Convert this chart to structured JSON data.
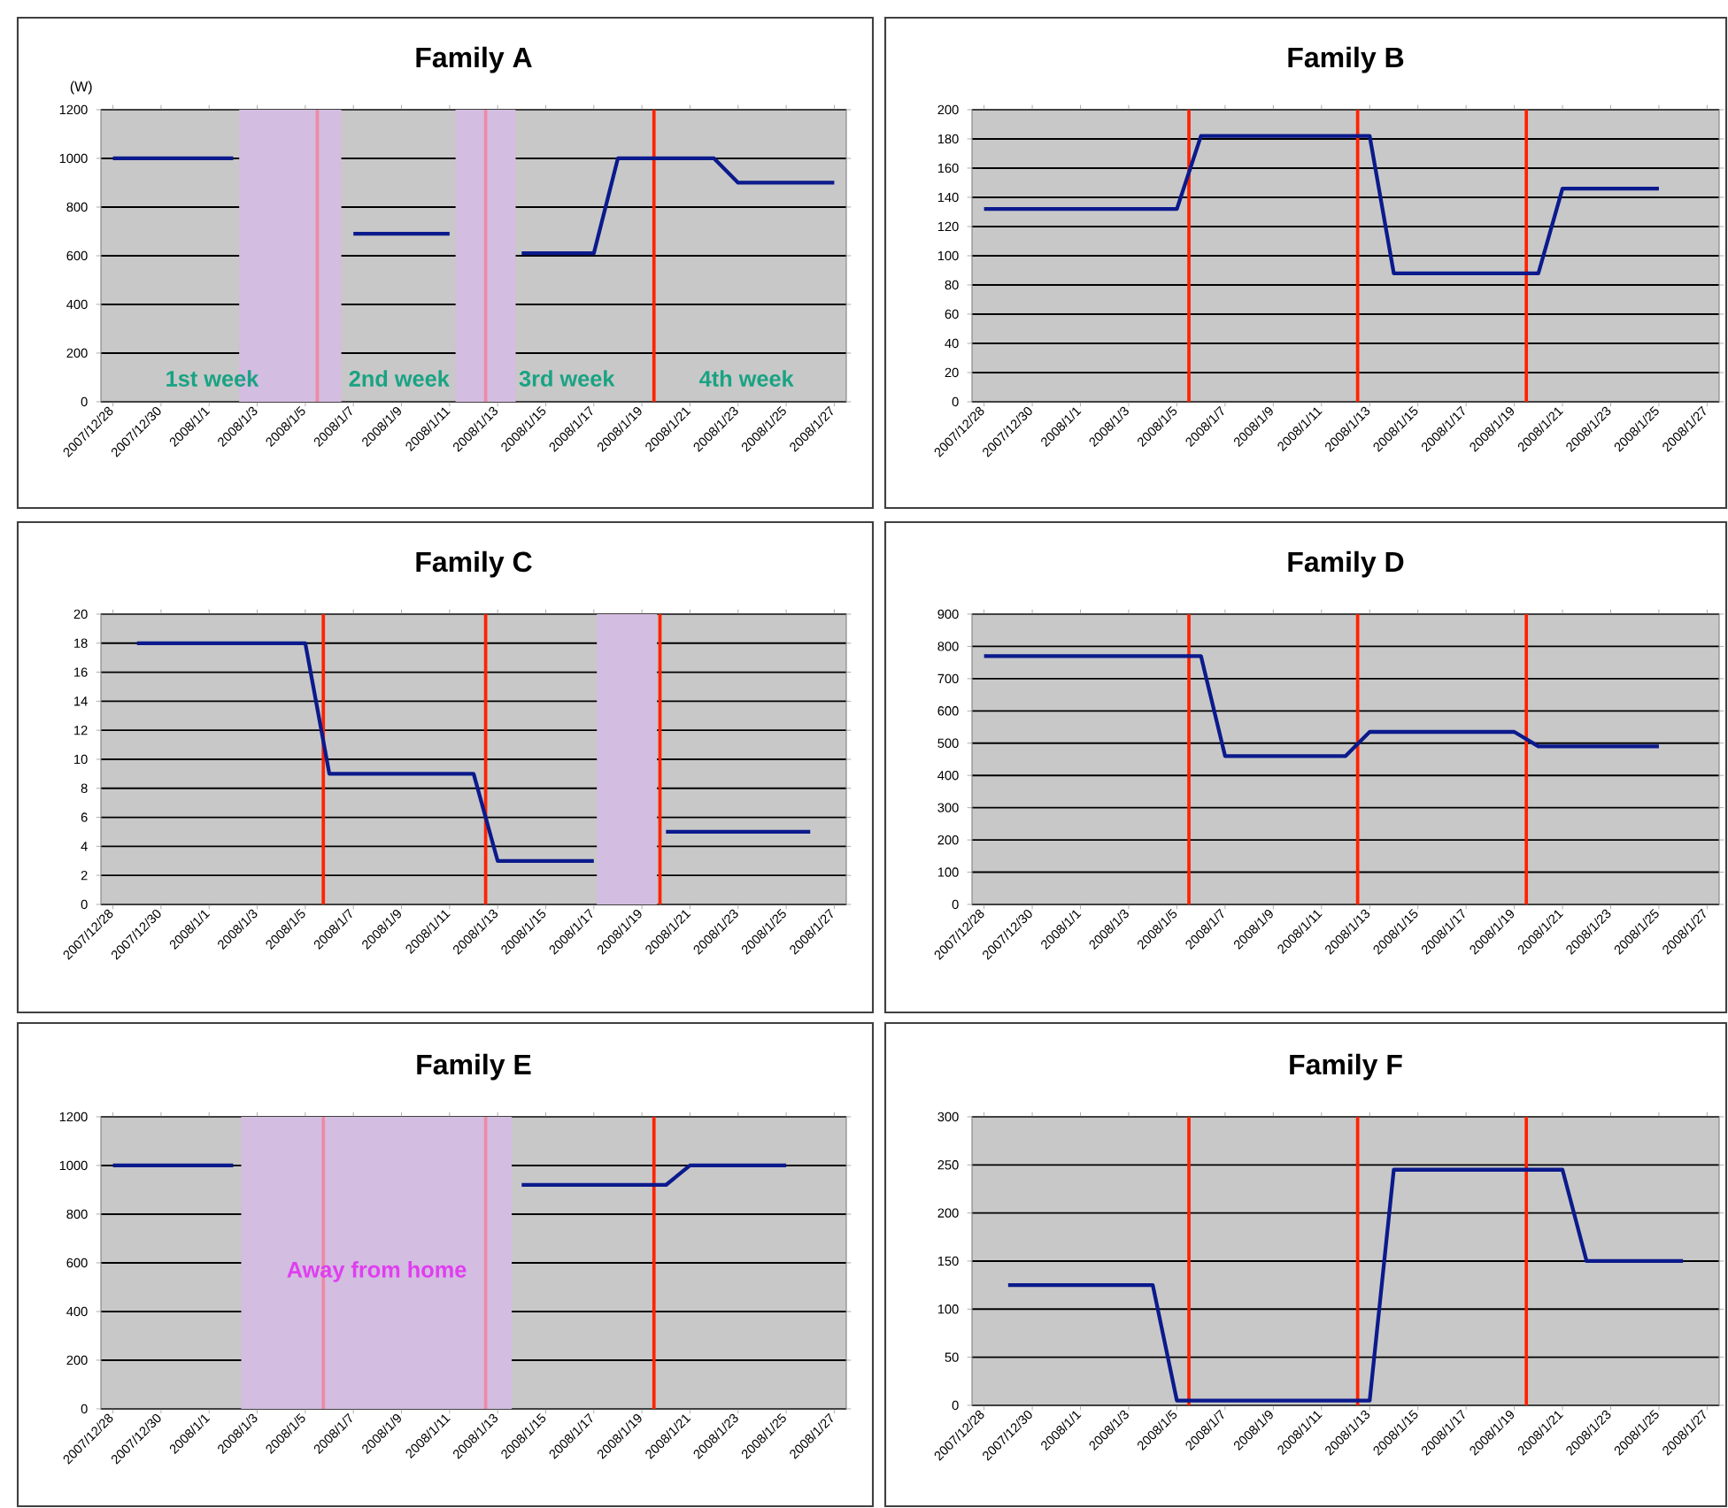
{
  "chart_data": [
    {
      "type": "line",
      "title": "Family A",
      "ylabel": "(W)",
      "color": "#0b1a8c",
      "grid": "y",
      "x": [
        "2007-12-28",
        "2007-12-29",
        "2007-12-30",
        "2007-12-31",
        "2008-01-01",
        "2008-01-02",
        "2008-01-03",
        "2008-01-04",
        "2008-01-05",
        "2008-01-06",
        "2008-01-07",
        "2008-01-08",
        "2008-01-09",
        "2008-01-10",
        "2008-01-11",
        "2008-01-12",
        "2008-01-13",
        "2008-01-14",
        "2008-01-15",
        "2008-01-16",
        "2008-01-17",
        "2008-01-18",
        "2008-01-19",
        "2008-01-20",
        "2008-01-21",
        "2008-01-22",
        "2008-01-23",
        "2008-01-24",
        "2008-01-25",
        "2008-01-26",
        "2008-01-27"
      ],
      "values": [
        1000,
        1000,
        1000,
        1000,
        1000,
        1000,
        null,
        null,
        null,
        null,
        690,
        690,
        690,
        690,
        690,
        null,
        null,
        610,
        610,
        610,
        610,
        1000,
        1000,
        1000,
        1000,
        1000,
        900,
        900,
        900,
        900,
        900
      ],
      "xlim": [
        "2007-12-27T12:00",
        "2008-01-27T12:00"
      ],
      "xticks": [
        {
          "value": "2007-12-28",
          "label": "2007/12/28"
        },
        {
          "value": "2007-12-30",
          "label": "2007/12/30"
        },
        {
          "value": "2008-01-01",
          "label": "2008/1/1"
        },
        {
          "value": "2008-01-03",
          "label": "2008/1/3"
        },
        {
          "value": "2008-01-05",
          "label": "2008/1/5"
        },
        {
          "value": "2008-01-07",
          "label": "2008/1/7"
        },
        {
          "value": "2008-01-09",
          "label": "2008/1/9"
        },
        {
          "value": "2008-01-11",
          "label": "2008/1/11"
        },
        {
          "value": "2008-01-13",
          "label": "2008/1/13"
        },
        {
          "value": "2008-01-15",
          "label": "2008/1/15"
        },
        {
          "value": "2008-01-17",
          "label": "2008/1/17"
        },
        {
          "value": "2008-01-19",
          "label": "2008/1/19"
        },
        {
          "value": "2008-01-21",
          "label": "2008/1/21"
        },
        {
          "value": "2008-01-23",
          "label": "2008/1/23"
        },
        {
          "value": "2008-01-25",
          "label": "2008/1/25"
        },
        {
          "value": "2008-01-27",
          "label": "2008/1/27"
        }
      ],
      "ylim": [
        0,
        1200
      ],
      "yticks": [
        0,
        200,
        400,
        600,
        800,
        1000,
        1200
      ],
      "bands": [
        {
          "axis": "x",
          "from": "2008-01-02T06:00",
          "to": "2008-01-06T12:00",
          "color": "#d3bde0"
        },
        {
          "axis": "x",
          "from": "2008-01-11T06:00",
          "to": "2008-01-13T18:00",
          "color": "#d3bde0"
        }
      ],
      "ref_lines": [
        {
          "axis": "x",
          "value": "2008-01-05T12:00",
          "color": "#ec8aa6"
        },
        {
          "axis": "x",
          "value": "2008-01-12T12:00",
          "color": "#ec8aa6"
        },
        {
          "axis": "x",
          "value": "2008-01-19T12:00",
          "color": "#ff2200"
        }
      ],
      "annotations": [
        "1st week",
        "2nd week",
        "3rd week",
        "4th week"
      ]
    },
    {
      "type": "line",
      "title": "Family B",
      "color": "#0b1a8c",
      "grid": "y",
      "x": [
        "2007-12-28",
        "2007-12-29",
        "2007-12-30",
        "2007-12-31",
        "2008-01-01",
        "2008-01-02",
        "2008-01-03",
        "2008-01-04",
        "2008-01-05",
        "2008-01-06",
        "2008-01-07",
        "2008-01-08",
        "2008-01-09",
        "2008-01-10",
        "2008-01-11",
        "2008-01-12",
        "2008-01-13",
        "2008-01-14",
        "2008-01-15",
        "2008-01-16",
        "2008-01-17",
        "2008-01-18",
        "2008-01-19",
        "2008-01-20",
        "2008-01-21",
        "2008-01-22",
        "2008-01-23",
        "2008-01-24",
        "2008-01-25"
      ],
      "values": [
        132,
        132,
        132,
        132,
        132,
        132,
        132,
        132,
        132,
        182,
        182,
        182,
        182,
        182,
        182,
        182,
        182,
        88,
        88,
        88,
        88,
        88,
        88,
        88,
        146,
        146,
        146,
        146,
        146
      ],
      "xlim": [
        "2007-12-27T12:00",
        "2008-01-27T12:00"
      ],
      "xticks": [
        {
          "value": "2007-12-28",
          "label": "2007/12/28"
        },
        {
          "value": "2007-12-30",
          "label": "2007/12/30"
        },
        {
          "value": "2008-01-01",
          "label": "2008/1/1"
        },
        {
          "value": "2008-01-03",
          "label": "2008/1/3"
        },
        {
          "value": "2008-01-05",
          "label": "2008/1/5"
        },
        {
          "value": "2008-01-07",
          "label": "2008/1/7"
        },
        {
          "value": "2008-01-09",
          "label": "2008/1/9"
        },
        {
          "value": "2008-01-11",
          "label": "2008/1/11"
        },
        {
          "value": "2008-01-13",
          "label": "2008/1/13"
        },
        {
          "value": "2008-01-15",
          "label": "2008/1/15"
        },
        {
          "value": "2008-01-17",
          "label": "2008/1/17"
        },
        {
          "value": "2008-01-19",
          "label": "2008/1/19"
        },
        {
          "value": "2008-01-21",
          "label": "2008/1/21"
        },
        {
          "value": "2008-01-23",
          "label": "2008/1/23"
        },
        {
          "value": "2008-01-25",
          "label": "2008/1/25"
        },
        {
          "value": "2008-01-27",
          "label": "2008/1/27"
        }
      ],
      "ylim": [
        0,
        200
      ],
      "yticks": [
        0,
        20,
        40,
        60,
        80,
        100,
        120,
        140,
        160,
        180,
        200
      ],
      "ref_lines": [
        {
          "axis": "x",
          "value": "2008-01-05T12:00",
          "color": "#ff2200"
        },
        {
          "axis": "x",
          "value": "2008-01-12T12:00",
          "color": "#ff2200"
        },
        {
          "axis": "x",
          "value": "2008-01-19T12:00",
          "color": "#ff2200"
        }
      ]
    },
    {
      "type": "line",
      "title": "Family C",
      "color": "#0b1a8c",
      "grid": "y",
      "x": [
        "2007-12-29",
        "2007-12-30",
        "2007-12-31",
        "2008-01-01",
        "2008-01-02",
        "2008-01-03",
        "2008-01-04",
        "2008-01-05",
        "2008-01-06",
        "2008-01-07",
        "2008-01-08",
        "2008-01-09",
        "2008-01-10",
        "2008-01-11",
        "2008-01-12",
        "2008-01-13",
        "2008-01-14",
        "2008-01-15",
        "2008-01-16",
        "2008-01-17",
        "2008-01-18",
        "2008-01-19",
        "2008-01-20",
        "2008-01-21",
        "2008-01-22",
        "2008-01-23",
        "2008-01-24",
        "2008-01-25",
        "2008-01-26"
      ],
      "values": [
        18,
        18,
        18,
        18,
        18,
        18,
        18,
        18,
        9,
        9,
        9,
        9,
        9,
        9,
        9,
        3,
        3,
        3,
        3,
        3,
        null,
        null,
        5,
        5,
        5,
        5,
        5,
        5,
        5
      ],
      "xlim": [
        "2007-12-27T12:00",
        "2008-01-27T12:00"
      ],
      "xticks": [
        {
          "value": "2007-12-28",
          "label": "2007/12/28"
        },
        {
          "value": "2007-12-30",
          "label": "2007/12/30"
        },
        {
          "value": "2008-01-01",
          "label": "2008/1/1"
        },
        {
          "value": "2008-01-03",
          "label": "2008/1/3"
        },
        {
          "value": "2008-01-05",
          "label": "2008/1/5"
        },
        {
          "value": "2008-01-07",
          "label": "2008/1/7"
        },
        {
          "value": "2008-01-09",
          "label": "2008/1/9"
        },
        {
          "value": "2008-01-11",
          "label": "2008/1/11"
        },
        {
          "value": "2008-01-13",
          "label": "2008/1/13"
        },
        {
          "value": "2008-01-15",
          "label": "2008/1/15"
        },
        {
          "value": "2008-01-17",
          "label": "2008/1/17"
        },
        {
          "value": "2008-01-19",
          "label": "2008/1/19"
        },
        {
          "value": "2008-01-21",
          "label": "2008/1/21"
        },
        {
          "value": "2008-01-23",
          "label": "2008/1/23"
        },
        {
          "value": "2008-01-25",
          "label": "2008/1/25"
        },
        {
          "value": "2008-01-27",
          "label": "2008/1/27"
        }
      ],
      "ylim": [
        0,
        20
      ],
      "yticks": [
        0,
        2,
        4,
        6,
        8,
        10,
        12,
        14,
        16,
        18,
        20
      ],
      "bands": [
        {
          "axis": "x",
          "from": "2008-01-17T03:00",
          "to": "2008-01-19T15:00",
          "color": "#d3bde0"
        }
      ],
      "ref_lines": [
        {
          "axis": "x",
          "value": "2008-01-05T18:00",
          "color": "#ff2200"
        },
        {
          "axis": "x",
          "value": "2008-01-12T12:00",
          "color": "#ff2200"
        },
        {
          "axis": "x",
          "value": "2008-01-19T18:00",
          "color": "#ff2200"
        }
      ]
    },
    {
      "type": "line",
      "title": "Family D",
      "color": "#0b1a8c",
      "grid": "y",
      "x": [
        "2007-12-28",
        "2007-12-29",
        "2007-12-30",
        "2007-12-31",
        "2008-01-01",
        "2008-01-02",
        "2008-01-03",
        "2008-01-04",
        "2008-01-05",
        "2008-01-06",
        "2008-01-07",
        "2008-01-08",
        "2008-01-09",
        "2008-01-10",
        "2008-01-11",
        "2008-01-12",
        "2008-01-13",
        "2008-01-14",
        "2008-01-15",
        "2008-01-16",
        "2008-01-17",
        "2008-01-18",
        "2008-01-19",
        "2008-01-20",
        "2008-01-21",
        "2008-01-22",
        "2008-01-23",
        "2008-01-24",
        "2008-01-25"
      ],
      "values": [
        770,
        770,
        770,
        770,
        770,
        770,
        770,
        770,
        770,
        770,
        460,
        460,
        460,
        460,
        460,
        460,
        535,
        535,
        535,
        535,
        535,
        535,
        535,
        490,
        490,
        490,
        490,
        490,
        490
      ],
      "xlim": [
        "2007-12-27T12:00",
        "2008-01-27T12:00"
      ],
      "xticks": [
        {
          "value": "2007-12-28",
          "label": "2007/12/28"
        },
        {
          "value": "2007-12-30",
          "label": "2007/12/30"
        },
        {
          "value": "2008-01-01",
          "label": "2008/1/1"
        },
        {
          "value": "2008-01-03",
          "label": "2008/1/3"
        },
        {
          "value": "2008-01-05",
          "label": "2008/1/5"
        },
        {
          "value": "2008-01-07",
          "label": "2008/1/7"
        },
        {
          "value": "2008-01-09",
          "label": "2008/1/9"
        },
        {
          "value": "2008-01-11",
          "label": "2008/1/11"
        },
        {
          "value": "2008-01-13",
          "label": "2008/1/13"
        },
        {
          "value": "2008-01-15",
          "label": "2008/1/15"
        },
        {
          "value": "2008-01-17",
          "label": "2008/1/17"
        },
        {
          "value": "2008-01-19",
          "label": "2008/1/19"
        },
        {
          "value": "2008-01-21",
          "label": "2008/1/21"
        },
        {
          "value": "2008-01-23",
          "label": "2008/1/23"
        },
        {
          "value": "2008-01-25",
          "label": "2008/1/25"
        },
        {
          "value": "2008-01-27",
          "label": "2008/1/27"
        }
      ],
      "ylim": [
        0,
        900
      ],
      "yticks": [
        0,
        100,
        200,
        300,
        400,
        500,
        600,
        700,
        800,
        900
      ],
      "ref_lines": [
        {
          "axis": "x",
          "value": "2008-01-05T12:00",
          "color": "#ff2200"
        },
        {
          "axis": "x",
          "value": "2008-01-12T12:00",
          "color": "#ff2200"
        },
        {
          "axis": "x",
          "value": "2008-01-19T12:00",
          "color": "#ff2200"
        }
      ]
    },
    {
      "type": "line",
      "title": "Family E",
      "color": "#0b1a8c",
      "grid": "y",
      "x": [
        "2007-12-28",
        "2007-12-29",
        "2007-12-30",
        "2007-12-31",
        "2008-01-01",
        "2008-01-02",
        "2008-01-03",
        "2008-01-04",
        "2008-01-05",
        "2008-01-06",
        "2008-01-07",
        "2008-01-08",
        "2008-01-09",
        "2008-01-10",
        "2008-01-11",
        "2008-01-12",
        "2008-01-13",
        "2008-01-14",
        "2008-01-15",
        "2008-01-16",
        "2008-01-17",
        "2008-01-18",
        "2008-01-19",
        "2008-01-20",
        "2008-01-21",
        "2008-01-22",
        "2008-01-23",
        "2008-01-24",
        "2008-01-25"
      ],
      "values": [
        1000,
        1000,
        1000,
        1000,
        1000,
        1000,
        null,
        null,
        null,
        null,
        null,
        null,
        null,
        null,
        null,
        null,
        null,
        920,
        920,
        920,
        920,
        920,
        920,
        920,
        1000,
        1000,
        1000,
        1000,
        1000
      ],
      "xlim": [
        "2007-12-27T12:00",
        "2008-01-27T12:00"
      ],
      "xticks": [
        {
          "value": "2007-12-28",
          "label": "2007/12/28"
        },
        {
          "value": "2007-12-30",
          "label": "2007/12/30"
        },
        {
          "value": "2008-01-01",
          "label": "2008/1/1"
        },
        {
          "value": "2008-01-03",
          "label": "2008/1/3"
        },
        {
          "value": "2008-01-05",
          "label": "2008/1/5"
        },
        {
          "value": "2008-01-07",
          "label": "2008/1/7"
        },
        {
          "value": "2008-01-09",
          "label": "2008/1/9"
        },
        {
          "value": "2008-01-11",
          "label": "2008/1/11"
        },
        {
          "value": "2008-01-13",
          "label": "2008/1/13"
        },
        {
          "value": "2008-01-15",
          "label": "2008/1/15"
        },
        {
          "value": "2008-01-17",
          "label": "2008/1/17"
        },
        {
          "value": "2008-01-19",
          "label": "2008/1/19"
        },
        {
          "value": "2008-01-21",
          "label": "2008/1/21"
        },
        {
          "value": "2008-01-23",
          "label": "2008/1/23"
        },
        {
          "value": "2008-01-25",
          "label": "2008/1/25"
        },
        {
          "value": "2008-01-27",
          "label": "2008/1/27"
        }
      ],
      "ylim": [
        0,
        1200
      ],
      "yticks": [
        0,
        200,
        400,
        600,
        800,
        1000,
        1200
      ],
      "bands": [
        {
          "axis": "x",
          "from": "2008-01-02T08:00",
          "to": "2008-01-13T14:00",
          "color": "#d3bde0"
        }
      ],
      "ref_lines": [
        {
          "axis": "x",
          "value": "2008-01-05T18:00",
          "color": "#ec8aa6"
        },
        {
          "axis": "x",
          "value": "2008-01-12T12:00",
          "color": "#ec8aa6"
        },
        {
          "axis": "x",
          "value": "2008-01-19T12:00",
          "color": "#ff2200"
        }
      ],
      "annotations": [
        "Away from home"
      ]
    },
    {
      "type": "line",
      "title": "Family F",
      "color": "#0b1a8c",
      "grid": "y",
      "x": [
        "2007-12-29",
        "2007-12-30",
        "2007-12-31",
        "2008-01-01",
        "2008-01-02",
        "2008-01-03",
        "2008-01-04",
        "2008-01-05",
        "2008-01-06",
        "2008-01-07",
        "2008-01-08",
        "2008-01-09",
        "2008-01-10",
        "2008-01-11",
        "2008-01-12",
        "2008-01-13",
        "2008-01-14",
        "2008-01-15",
        "2008-01-16",
        "2008-01-17",
        "2008-01-18",
        "2008-01-19",
        "2008-01-20",
        "2008-01-21",
        "2008-01-22",
        "2008-01-23",
        "2008-01-24",
        "2008-01-25",
        "2008-01-26"
      ],
      "values": [
        125,
        125,
        125,
        125,
        125,
        125,
        125,
        5,
        5,
        5,
        5,
        5,
        5,
        5,
        5,
        5,
        245,
        245,
        245,
        245,
        245,
        245,
        245,
        245,
        150,
        150,
        150,
        150,
        150
      ],
      "xlim": [
        "2007-12-27T12:00",
        "2008-01-27T12:00"
      ],
      "xticks": [
        {
          "value": "2007-12-28",
          "label": "2007/12/28"
        },
        {
          "value": "2007-12-30",
          "label": "2007/12/30"
        },
        {
          "value": "2008-01-01",
          "label": "2008/1/1"
        },
        {
          "value": "2008-01-03",
          "label": "2008/1/3"
        },
        {
          "value": "2008-01-05",
          "label": "2008/1/5"
        },
        {
          "value": "2008-01-07",
          "label": "2008/1/7"
        },
        {
          "value": "2008-01-09",
          "label": "2008/1/9"
        },
        {
          "value": "2008-01-11",
          "label": "2008/1/11"
        },
        {
          "value": "2008-01-13",
          "label": "2008/1/13"
        },
        {
          "value": "2008-01-15",
          "label": "2008/1/15"
        },
        {
          "value": "2008-01-17",
          "label": "2008/1/17"
        },
        {
          "value": "2008-01-19",
          "label": "2008/1/19"
        },
        {
          "value": "2008-01-21",
          "label": "2008/1/21"
        },
        {
          "value": "2008-01-23",
          "label": "2008/1/23"
        },
        {
          "value": "2008-01-25",
          "label": "2008/1/25"
        },
        {
          "value": "2008-01-27",
          "label": "2008/1/27"
        }
      ],
      "ylim": [
        0,
        300
      ],
      "yticks": [
        0,
        50,
        100,
        150,
        200,
        250,
        300
      ],
      "ref_lines": [
        {
          "axis": "x",
          "value": "2008-01-05T12:00",
          "color": "#ff2200"
        },
        {
          "axis": "x",
          "value": "2008-01-12T12:00",
          "color": "#ff2200"
        },
        {
          "axis": "x",
          "value": "2008-01-19T12:00",
          "color": "#ff2200"
        }
      ]
    }
  ]
}
